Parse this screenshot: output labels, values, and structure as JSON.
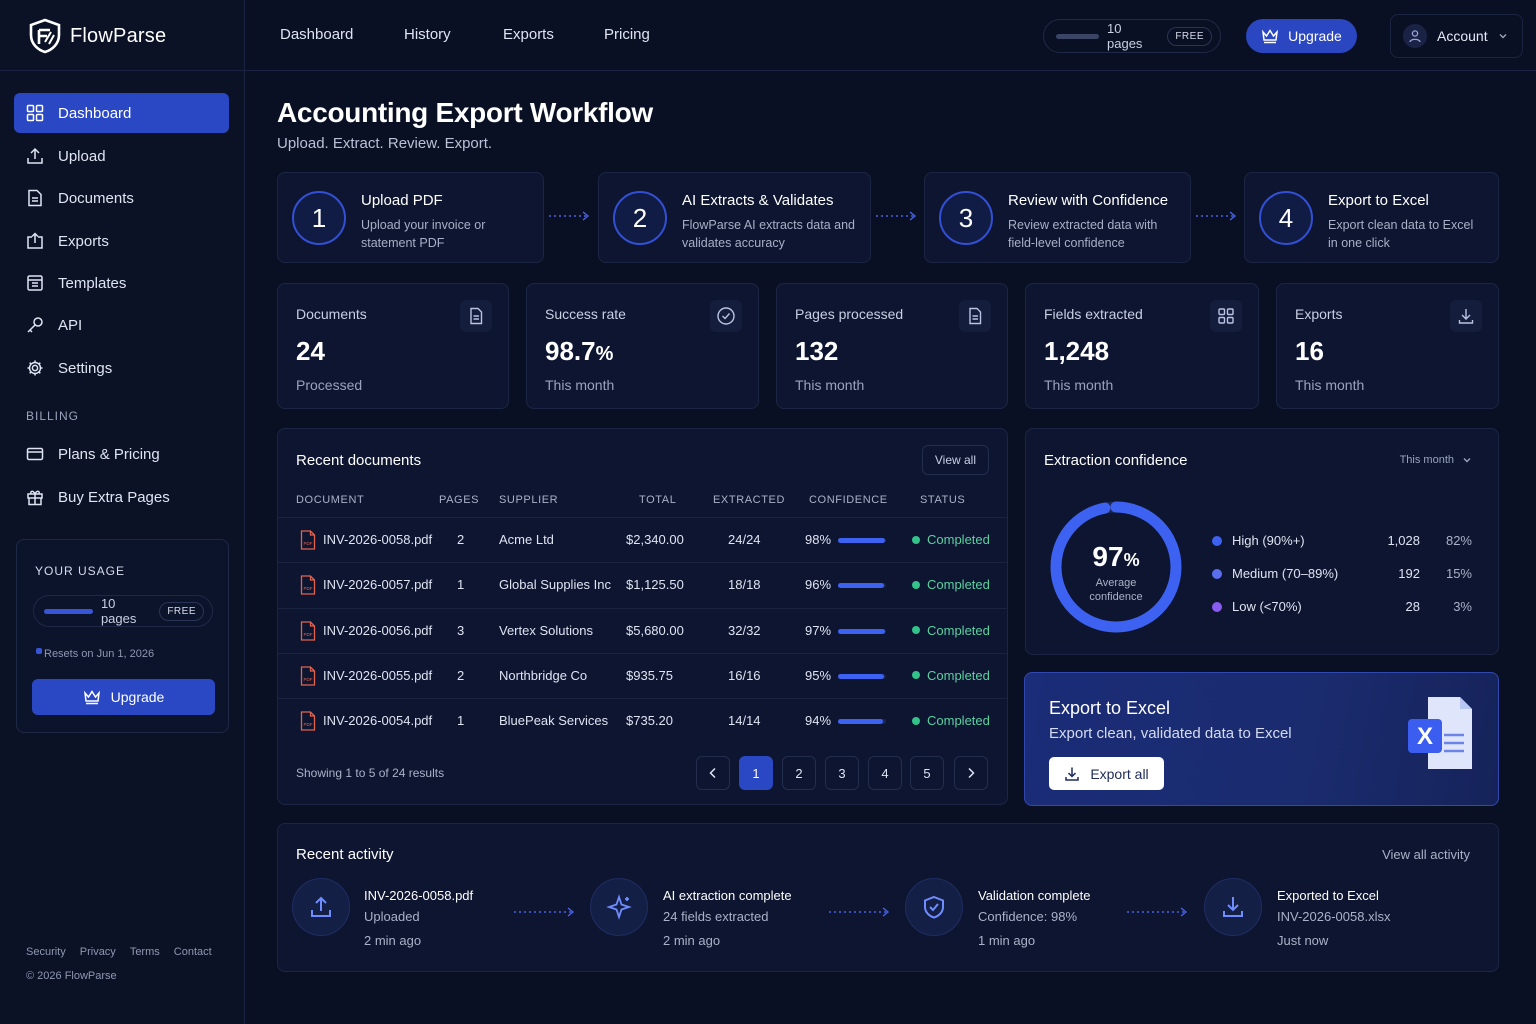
{
  "app": {
    "brand": "FlowParse"
  },
  "sidebar": {
    "items": [
      {
        "label": "Dashboard",
        "icon": "grid-icon"
      },
      {
        "label": "Upload",
        "icon": "upload-icon"
      },
      {
        "label": "Documents",
        "icon": "document-icon"
      },
      {
        "label": "Exports",
        "icon": "export-icon"
      },
      {
        "label": "Templates",
        "icon": "template-icon"
      },
      {
        "label": "API",
        "icon": "key-icon"
      },
      {
        "label": "Settings",
        "icon": "gear-icon"
      }
    ],
    "billing_label": "BILLING",
    "billing_items": [
      {
        "label": "Plans & Pricing",
        "icon": "card-icon"
      },
      {
        "label": "Buy Extra Pages",
        "icon": "gift-icon"
      }
    ],
    "usage": {
      "title": "YOUR USAGE",
      "pages": "10 pages",
      "plan": "FREE",
      "reset": "Resets on Jun 1, 2026",
      "upgrade": "Upgrade"
    },
    "footer_links": [
      "Security",
      "Privacy",
      "Terms",
      "Contact"
    ],
    "copyright": "© 2026 FlowParse"
  },
  "topbar": {
    "nav": [
      "Dashboard",
      "History",
      "Exports",
      "Pricing"
    ],
    "pages": "10 pages",
    "plan": "FREE",
    "upgrade": "Upgrade",
    "account": "Account"
  },
  "header": {
    "title": "Accounting Export Workflow",
    "subtitle": "Upload. Extract. Review. Export."
  },
  "steps": [
    {
      "num": "1",
      "title": "Upload PDF",
      "desc": "Upload your invoice or statement PDF"
    },
    {
      "num": "2",
      "title": "AI Extracts & Validates",
      "desc": "FlowParse AI extracts data and validates accuracy"
    },
    {
      "num": "3",
      "title": "Review with Confidence",
      "desc": "Review extracted data with field-level confidence"
    },
    {
      "num": "4",
      "title": "Export to Excel",
      "desc": "Export clean data to Excel in one click"
    }
  ],
  "stats": [
    {
      "label": "Documents",
      "value": "24",
      "suffix": "",
      "sub": "Processed",
      "icon": "document-icon"
    },
    {
      "label": "Success rate",
      "value": "98.7",
      "suffix": "%",
      "sub": "This month",
      "icon": "check-circle-icon"
    },
    {
      "label": "Pages processed",
      "value": "132",
      "suffix": "",
      "sub": "This month",
      "icon": "document-icon"
    },
    {
      "label": "Fields extracted",
      "value": "1,248",
      "suffix": "",
      "sub": "This month",
      "icon": "grid-icon"
    },
    {
      "label": "Exports",
      "value": "16",
      "suffix": "",
      "sub": "This month",
      "icon": "download-icon"
    }
  ],
  "recent_docs": {
    "title": "Recent documents",
    "view_all": "View all",
    "columns": [
      "DOCUMENT",
      "PAGES",
      "SUPPLIER",
      "TOTAL",
      "EXTRACTED",
      "CONFIDENCE",
      "STATUS"
    ],
    "rows": [
      {
        "doc": "INV-2026-0058.pdf",
        "pages": "2",
        "supplier": "Acme Ltd",
        "total": "$2,340.00",
        "extracted": "24/24",
        "confidence": "98%",
        "conf_value": 0.98,
        "status": "Completed"
      },
      {
        "doc": "INV-2026-0057.pdf",
        "pages": "1",
        "supplier": "Global Supplies Inc",
        "total": "$1,125.50",
        "extracted": "18/18",
        "confidence": "96%",
        "conf_value": 0.96,
        "status": "Completed"
      },
      {
        "doc": "INV-2026-0056.pdf",
        "pages": "3",
        "supplier": "Vertex Solutions",
        "total": "$5,680.00",
        "extracted": "32/32",
        "confidence": "97%",
        "conf_value": 0.97,
        "status": "Completed"
      },
      {
        "doc": "INV-2026-0055.pdf",
        "pages": "2",
        "supplier": "Northbridge Co",
        "total": "$935.75",
        "extracted": "16/16",
        "confidence": "95%",
        "conf_value": 0.95,
        "status": "Completed"
      },
      {
        "doc": "INV-2026-0054.pdf",
        "pages": "1",
        "supplier": "BluePeak Services",
        "total": "$735.20",
        "extracted": "14/14",
        "confidence": "94%",
        "conf_value": 0.94,
        "status": "Completed"
      }
    ],
    "showing": "Showing 1 to 5 of 24 results",
    "pages": [
      "1",
      "2",
      "3",
      "4",
      "5"
    ],
    "active_page": "1"
  },
  "confidence": {
    "title": "Extraction confidence",
    "period": "This month",
    "value": "97",
    "unit": "%",
    "value_fraction": 0.97,
    "label": "Average confidence",
    "legend": [
      {
        "name": "High (90%+)",
        "count": "1,028",
        "pct": "82%",
        "color": "#3d62f2"
      },
      {
        "name": "Medium (70–89%)",
        "count": "192",
        "pct": "15%",
        "color": "#5a6ff0"
      },
      {
        "name": "Low (<70%)",
        "count": "28",
        "pct": "3%",
        "color": "#8a5cf0"
      }
    ]
  },
  "export_cta": {
    "title": "Export to Excel",
    "subtitle": "Export clean, validated data to Excel",
    "button": "Export all",
    "icon_letter": "X"
  },
  "activity": {
    "title": "Recent activity",
    "view_all": "View all activity",
    "items": [
      {
        "name": "INV-2026-0058.pdf",
        "detail": "Uploaded",
        "time": "2 min ago",
        "icon": "upload-icon"
      },
      {
        "name": "AI extraction complete",
        "detail": "24 fields extracted",
        "time": "2 min ago",
        "icon": "sparkle-icon"
      },
      {
        "name": "Validation complete",
        "detail": "Confidence: 98%",
        "time": "1 min ago",
        "icon": "shield-check-icon"
      },
      {
        "name": "Exported to Excel",
        "detail": "INV-2026-0058.xlsx",
        "time": "Just now",
        "icon": "download-icon"
      }
    ]
  },
  "colors": {
    "accent": "#2b48c4",
    "background": "#0a1024",
    "success": "#32c28a"
  }
}
